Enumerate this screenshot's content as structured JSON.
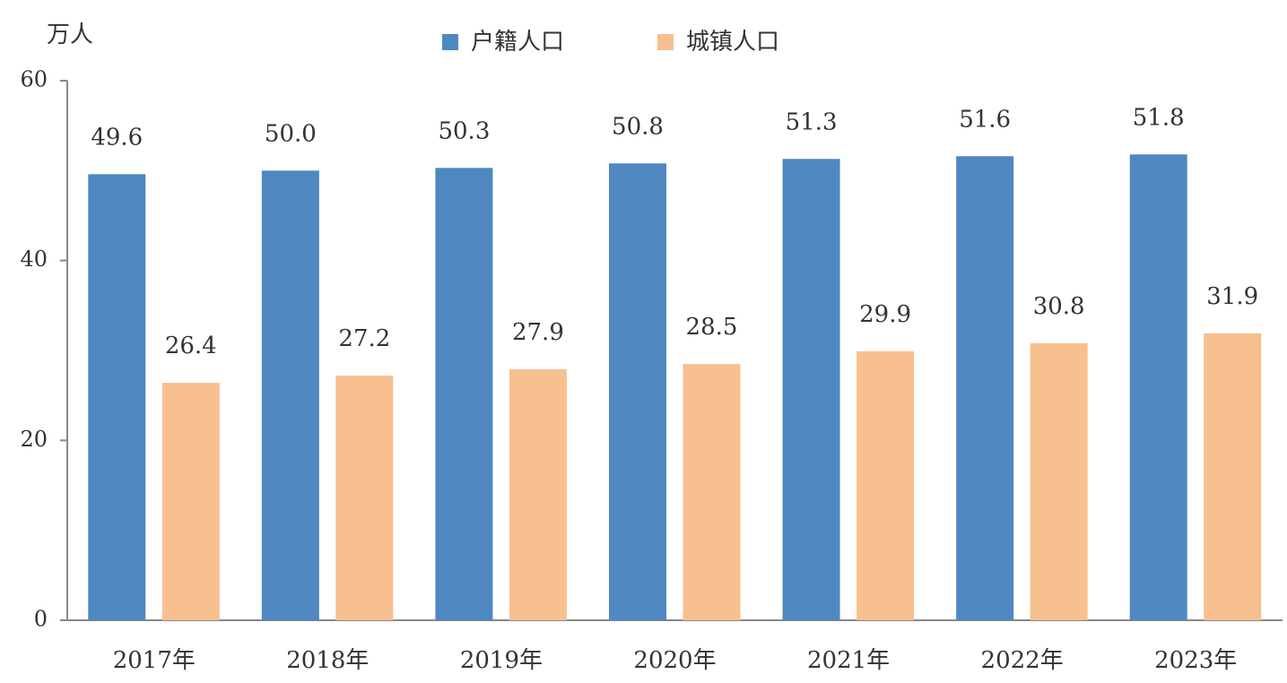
{
  "chart_data": {
    "type": "bar",
    "y_label": "万人",
    "categories": [
      "2017年",
      "2018年",
      "2019年",
      "2020年",
      "2021年",
      "2022年",
      "2023年"
    ],
    "series": [
      {
        "name": "户籍人口",
        "color": "#4f88c0",
        "values": [
          49.6,
          50.0,
          50.3,
          50.8,
          51.3,
          51.6,
          51.8
        ],
        "value_labels": [
          "49.6",
          "50.0",
          "50.3",
          "50.8",
          "51.3",
          "51.6",
          "51.8"
        ]
      },
      {
        "name": "城镇人口",
        "color": "#f8bf8f",
        "values": [
          26.4,
          27.2,
          27.9,
          28.5,
          29.9,
          30.8,
          31.9
        ],
        "value_labels": [
          "26.4",
          "27.2",
          "27.9",
          "28.5",
          "29.9",
          "30.8",
          "31.9"
        ]
      }
    ],
    "ylim": [
      0,
      60
    ],
    "yticks": [
      0,
      20,
      40,
      60
    ],
    "legend": "top"
  }
}
